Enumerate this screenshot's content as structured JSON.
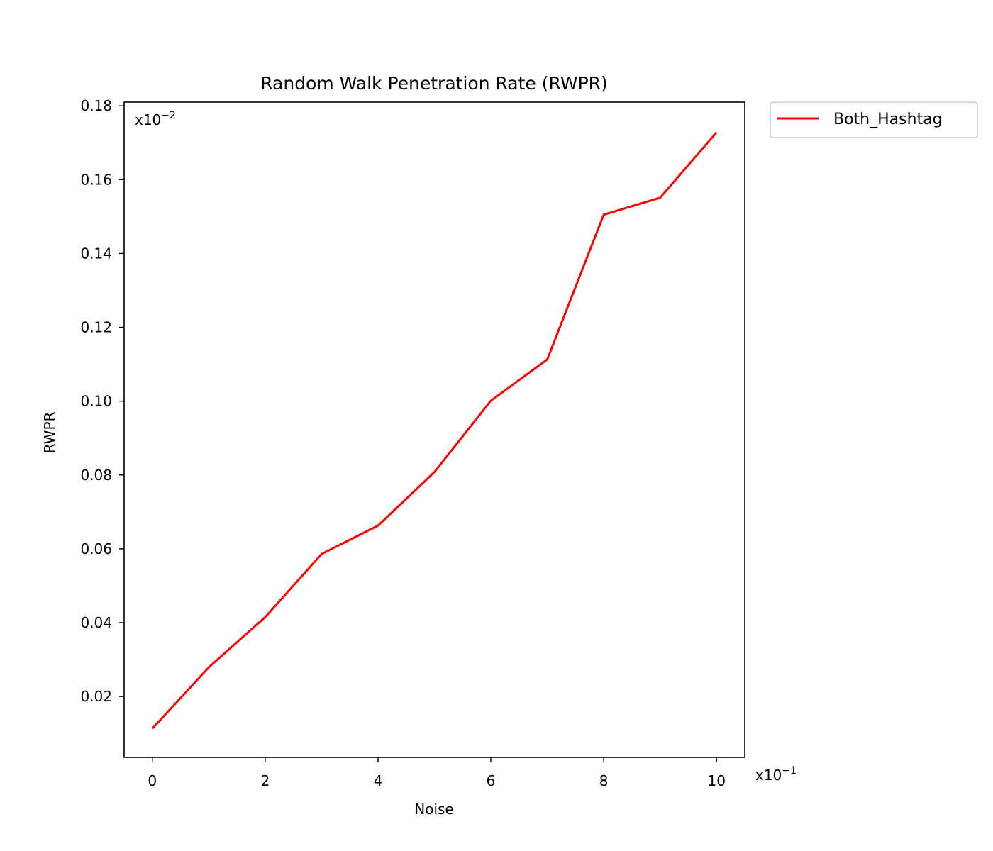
{
  "chart_data": {
    "type": "line",
    "title": "Random Walk Penetration Rate (RWPR)",
    "xlabel": "Noise",
    "ylabel": "RWPR",
    "x_multiplier": {
      "base": "x10",
      "exponent": "−1"
    },
    "y_multiplier": {
      "base": "x10",
      "exponent": "−2"
    },
    "xlim": [
      -0.5,
      10.5
    ],
    "ylim": [
      0.0035,
      0.181
    ],
    "x_ticks": [
      0,
      2,
      4,
      6,
      8,
      10
    ],
    "x_tick_labels": [
      "0",
      "2",
      "4",
      "6",
      "8",
      "10"
    ],
    "y_ticks": [
      0.02,
      0.04,
      0.06,
      0.08,
      0.1,
      0.12,
      0.14,
      0.16,
      0.18
    ],
    "y_tick_labels": [
      "0.02",
      "0.04",
      "0.06",
      "0.08",
      "0.10",
      "0.12",
      "0.14",
      "0.16",
      "0.18"
    ],
    "grid": false,
    "legend_position": "outside top-right",
    "series": [
      {
        "name": "Both_Hashtag",
        "color": "#ff0000",
        "x": [
          0,
          1,
          2,
          3,
          4,
          5,
          6,
          7,
          8,
          9,
          10
        ],
        "y": [
          0.0113,
          0.0279,
          0.0415,
          0.0586,
          0.0663,
          0.0808,
          0.1001,
          0.1113,
          0.1505,
          0.1551,
          0.1728
        ]
      }
    ]
  }
}
